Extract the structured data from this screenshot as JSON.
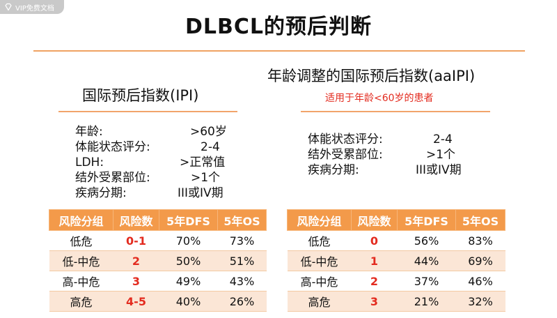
{
  "badge": {
    "label": "VIP免费文档",
    "icon": "diamond-icon"
  },
  "title": "DLBCL的预后判断",
  "colors": {
    "accent": "#f39a4a",
    "highlight": "#e32b1f",
    "stripe": "#fbe6d6"
  },
  "ipi": {
    "title": "国际预后指数(IPI)",
    "factors": [
      {
        "label": "年龄:",
        "value": ">60岁"
      },
      {
        "label": "体能状态评分:",
        "value": "2-4"
      },
      {
        "label": "LDH:",
        "value": ">正常值"
      },
      {
        "label": "结外受累部位:",
        "value": ">1个"
      },
      {
        "label": "疾病分期:",
        "value": "III或IV期"
      }
    ],
    "table": {
      "headers": [
        "风险分组",
        "风险数",
        "5年DFS",
        "5年OS"
      ],
      "rows": [
        [
          "低危",
          "0-1",
          "70%",
          "73%"
        ],
        [
          "低-中危",
          "2",
          "50%",
          "51%"
        ],
        [
          "高-中危",
          "3",
          "49%",
          "43%"
        ],
        [
          "高危",
          "4-5",
          "40%",
          "26%"
        ]
      ]
    }
  },
  "aaipi": {
    "title": "年龄调整的国际预后指数(aaIPI)",
    "note": "适用于年龄<60岁的患者",
    "factors": [
      {
        "label": "体能状态评分:",
        "value": "2-4"
      },
      {
        "label": "结外受累部位:",
        "value": ">1个"
      },
      {
        "label": "疾病分期:",
        "value": "III或IV期"
      }
    ],
    "table": {
      "headers": [
        "风险分组",
        "风险数",
        "5年DFS",
        "5年OS"
      ],
      "rows": [
        [
          "低危",
          "0",
          "56%",
          "83%"
        ],
        [
          "低-中危",
          "1",
          "44%",
          "69%"
        ],
        [
          "高-中危",
          "2",
          "37%",
          "46%"
        ],
        [
          "高危",
          "3",
          "21%",
          "32%"
        ]
      ]
    }
  }
}
